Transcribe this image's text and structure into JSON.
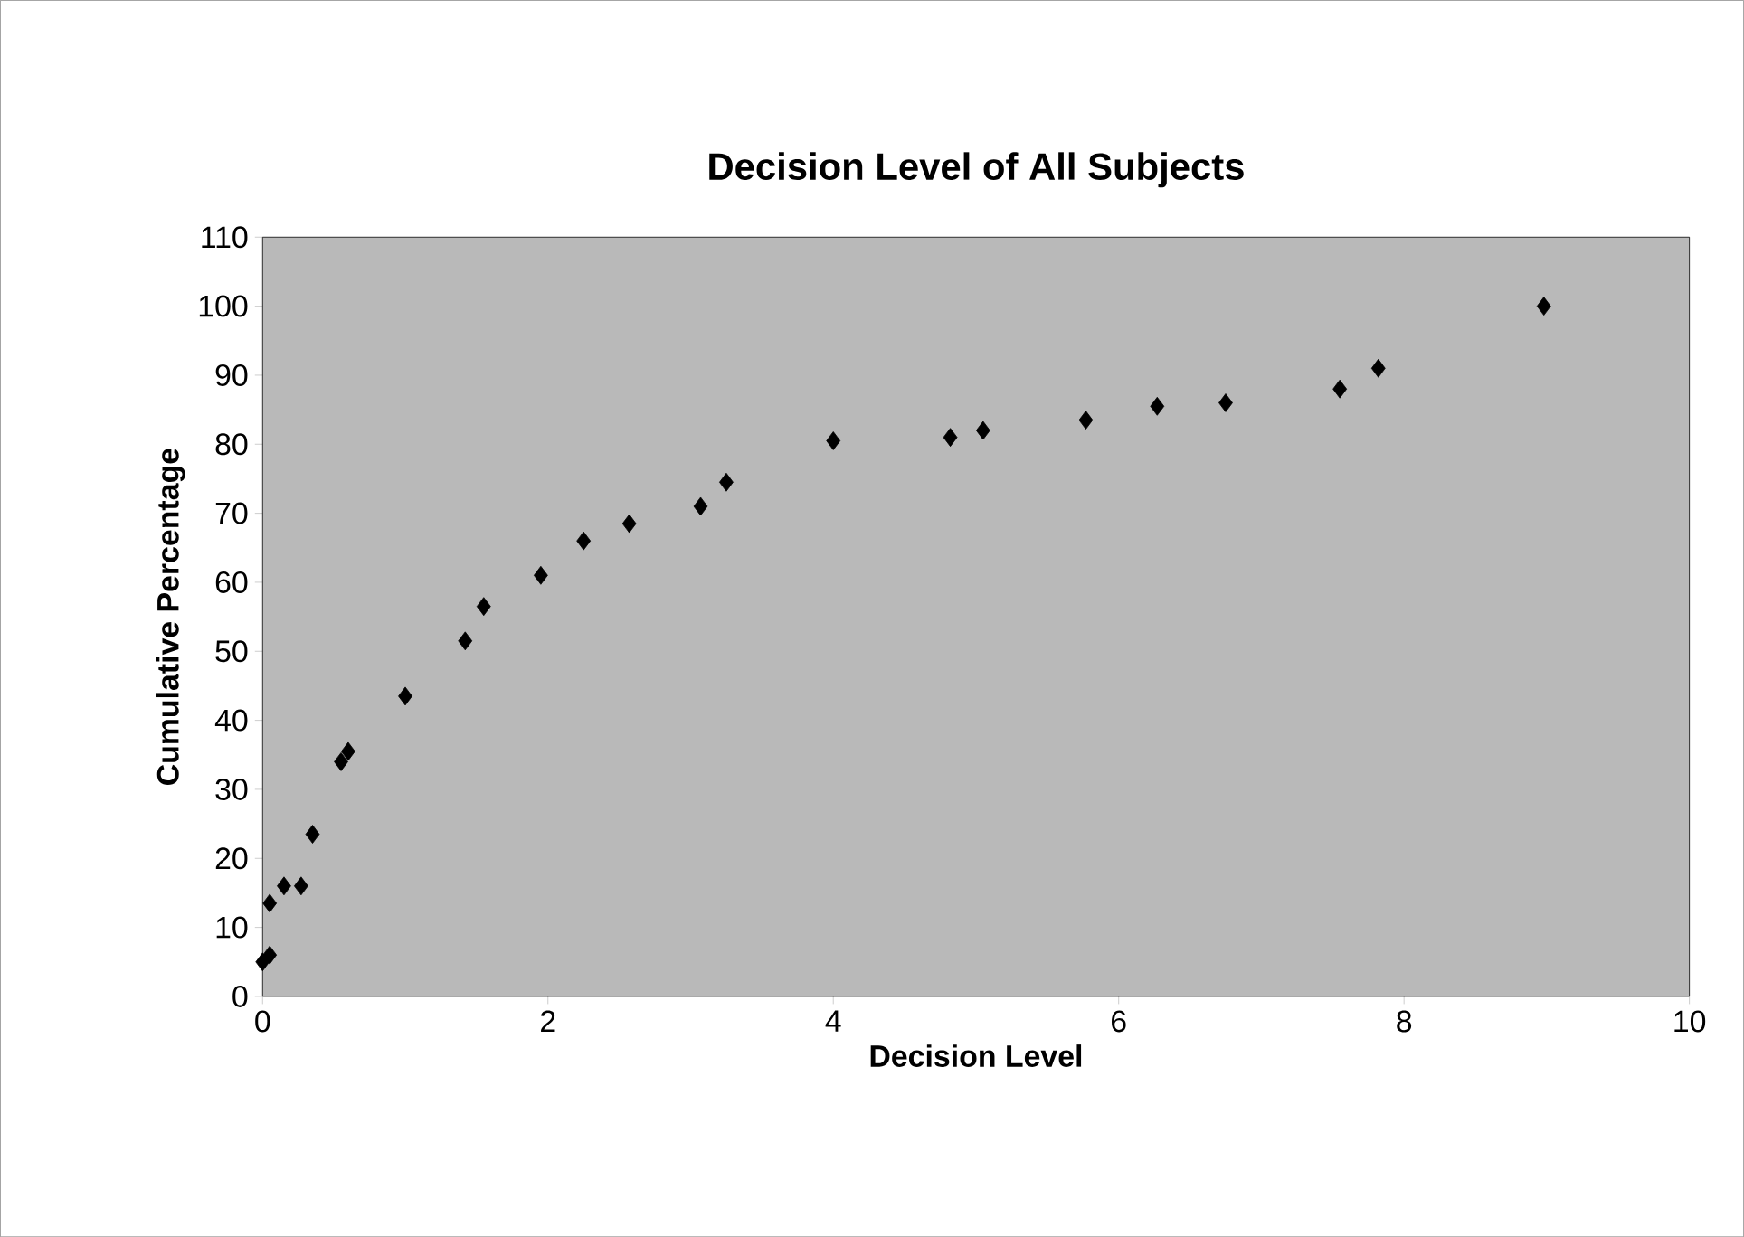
{
  "chart_data": {
    "type": "scatter",
    "title": "Decision Level of All Subjects",
    "xlabel": "Decision Level",
    "ylabel": "Cumulative Percentage",
    "x": [
      0.0,
      0.05,
      0.05,
      0.15,
      0.27,
      0.35,
      0.55,
      0.6,
      1.0,
      1.42,
      1.55,
      1.95,
      2.25,
      2.57,
      3.07,
      3.25,
      4.0,
      4.82,
      5.05,
      5.77,
      6.27,
      6.75,
      7.55,
      7.82,
      8.98
    ],
    "values": [
      5,
      6,
      13.5,
      16,
      16,
      23.5,
      34,
      35.5,
      43.5,
      51.5,
      56.5,
      61,
      66,
      68.5,
      71,
      74.5,
      80.5,
      81,
      82,
      83.5,
      85.5,
      86,
      88,
      91,
      100
    ],
    "color": "#000000",
    "marker": "diamond",
    "grid": false,
    "xlim": [
      0,
      10
    ],
    "xticks": [
      0,
      2,
      4,
      6,
      8,
      10
    ],
    "ylim": [
      0,
      110
    ],
    "yticks": [
      0,
      10,
      20,
      30,
      40,
      50,
      60,
      70,
      80,
      90,
      100,
      110
    ]
  }
}
